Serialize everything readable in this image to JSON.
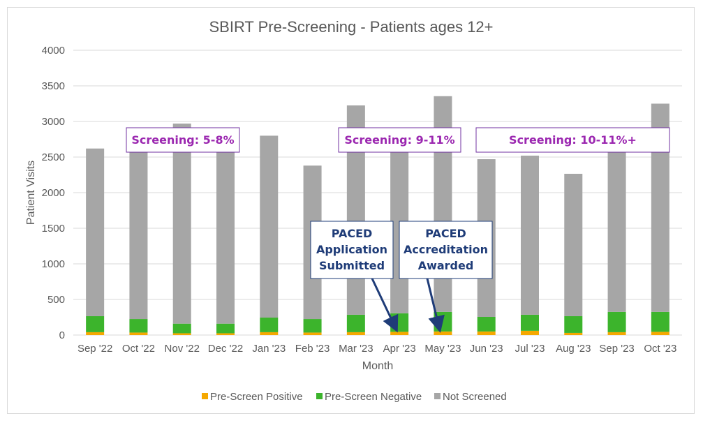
{
  "chart_data": {
    "type": "bar",
    "stacked": true,
    "title": "SBIRT Pre-Screening - Patients ages 12+",
    "xlabel": "Month",
    "ylabel": "Patient Visits",
    "ylim": [
      0,
      4000
    ],
    "yticks": [
      "0",
      "500",
      "1000",
      "1500",
      "2000",
      "2500",
      "3000",
      "3500",
      "4000"
    ],
    "grid": true,
    "legend_position": "bottom",
    "categories": [
      "Sep '22",
      "Oct '22",
      "Nov '22",
      "Dec '22",
      "Jan '23",
      "Feb '23",
      "Mar '23",
      "Apr '23",
      "May '23",
      "Jun '23",
      "Jul '23",
      "Aug '23",
      "Sep '23",
      "Oct '23"
    ],
    "series": [
      {
        "name": "Pre-Screen Positive",
        "color": "#f5a800",
        "values": [
          40,
          35,
          25,
          25,
          40,
          35,
          40,
          45,
          50,
          50,
          60,
          30,
          40,
          45
        ]
      },
      {
        "name": "Pre-Screen Negative",
        "color": "#3cb42c",
        "values": [
          225,
          190,
          135,
          135,
          205,
          190,
          245,
          260,
          275,
          205,
          225,
          235,
          285,
          280
        ]
      },
      {
        "name": "Not Screened",
        "color": "#a6a6a6",
        "values": [
          2355,
          2375,
          2810,
          2420,
          2555,
          2155,
          2940,
          2550,
          3030,
          2215,
          2235,
          2000,
          2310,
          2925
        ]
      }
    ],
    "annotations": {
      "screening": [
        {
          "text": "Screening: 5-8%"
        },
        {
          "text": "Screening: 9-11%"
        },
        {
          "text": "Screening: 10-11%+"
        }
      ],
      "milestones": [
        {
          "lines": [
            "PACED",
            "Application",
            "Submitted"
          ],
          "target": "Apr '23"
        },
        {
          "lines": [
            "PACED",
            "Accreditation",
            "Awarded"
          ],
          "target": "May '23"
        }
      ]
    }
  }
}
